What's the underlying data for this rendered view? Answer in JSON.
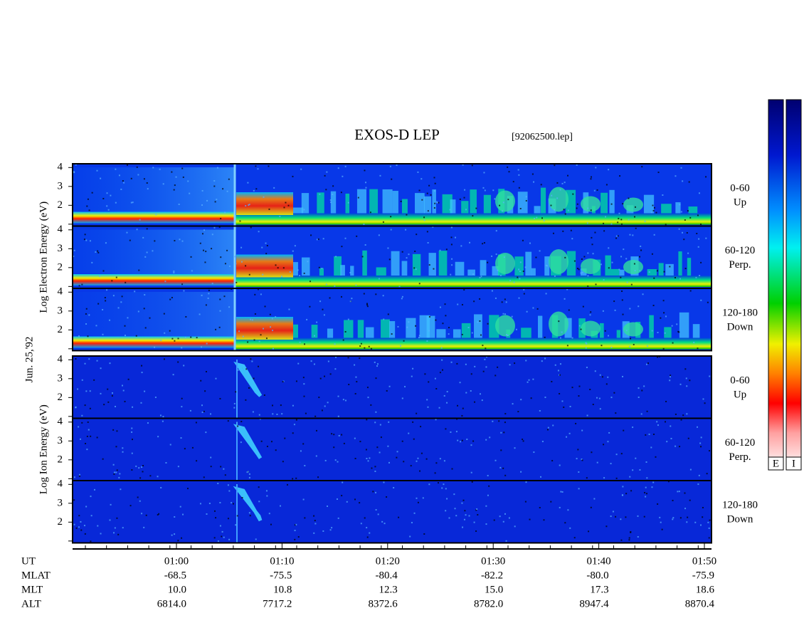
{
  "title": "EXOS-D LEP",
  "file": "[92062500.lep]",
  "date": "Jun. 25,'92",
  "chart_data": {
    "type": "spectrogram",
    "groups": [
      {
        "axis_label": "Log Electron Energy (eV)",
        "panels": [
          {
            "label": "0-60",
            "sublabel": "Up"
          },
          {
            "label": "60-120",
            "sublabel": "Perp."
          },
          {
            "label": "120-180",
            "sublabel": "Down"
          }
        ]
      },
      {
        "axis_label": "Log Ion Energy (eV)",
        "panels": [
          {
            "label": "0-60",
            "sublabel": "Up"
          },
          {
            "label": "60-120",
            "sublabel": "Perp."
          },
          {
            "label": "120-180",
            "sublabel": "Down"
          }
        ]
      }
    ],
    "ylim": [
      0.9,
      4.2
    ],
    "yticks": [
      2,
      3,
      4
    ],
    "yminor": [
      1
    ],
    "colorbars": [
      "E",
      "I"
    ],
    "ephemeris": [
      {
        "name": "UT",
        "values": [
          "01:00",
          "01:10",
          "01:20",
          "01:30",
          "01:40",
          "01:50"
        ]
      },
      {
        "name": "MLAT",
        "values": [
          "-68.5",
          "-75.5",
          "-80.4",
          "-82.2",
          "-80.0",
          "-75.9"
        ]
      },
      {
        "name": "MLT",
        "values": [
          "10.0",
          "10.8",
          "12.3",
          "15.0",
          "17.3",
          "18.6"
        ]
      },
      {
        "name": "ALT",
        "values": [
          "6814.0",
          "7717.2",
          "8372.6",
          "8782.0",
          "8947.4",
          "8870.4"
        ]
      }
    ]
  }
}
